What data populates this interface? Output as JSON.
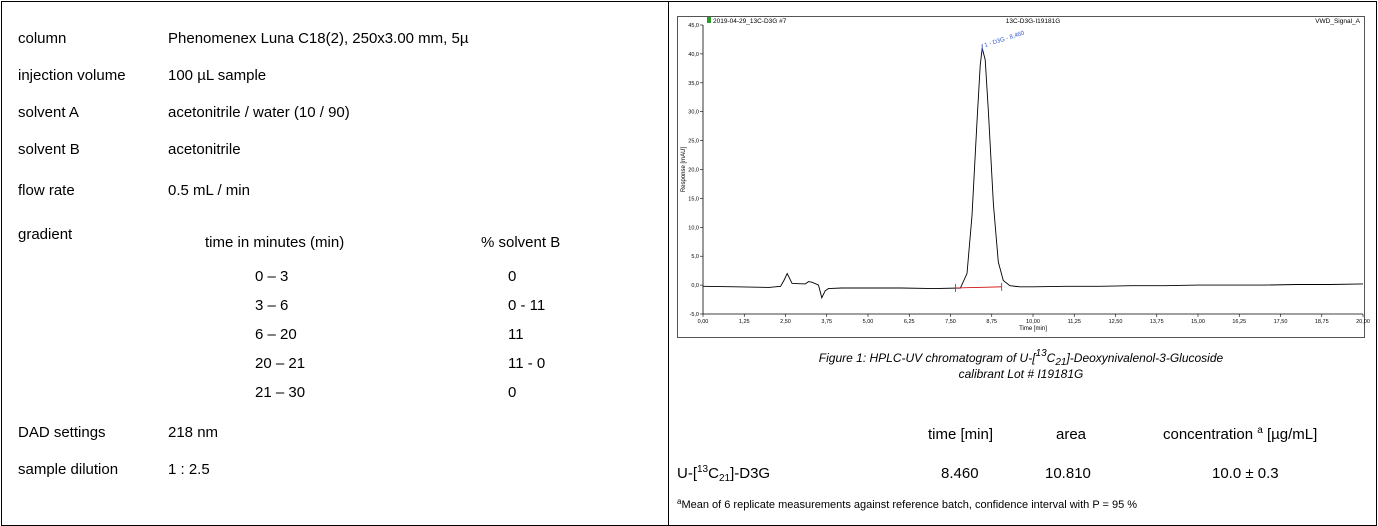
{
  "params": [
    {
      "label": "column",
      "value": "Phenomenex Luna C18(2), 250x3.00 mm, 5µ"
    },
    {
      "label": "injection volume",
      "value": "100 µL sample"
    },
    {
      "label": "solvent A",
      "value": "acetonitrile / water (10 / 90)"
    },
    {
      "label": "solvent B",
      "value": "acetonitrile"
    },
    {
      "label": "flow rate",
      "value": "0.5 mL / min"
    },
    {
      "label": "gradient",
      "value": ""
    },
    {
      "label": "DAD settings",
      "value": "218 nm"
    },
    {
      "label": "sample dilution",
      "value": "1 : 2.5"
    }
  ],
  "gradient": {
    "col1_header": "time in minutes (min)",
    "col2_header": "% solvent B",
    "rows": [
      {
        "time": "0 – 3",
        "b": "0"
      },
      {
        "time": "3 – 6",
        "b": "0 - 11"
      },
      {
        "time": "6 – 20",
        "b": "11"
      },
      {
        "time": "20 – 21",
        "b": "11 - 0"
      },
      {
        "time": "21 – 30",
        "b": "0"
      }
    ]
  },
  "chart_data": {
    "type": "line",
    "header_left": "2019-04-29_13C-D3G #7",
    "header_center": "13C-D3G-I19181G",
    "header_right": "VWD_Signal_A",
    "xlabel": "Time [min]",
    "ylabel": "Response [mAU]",
    "xlim": [
      0,
      20
    ],
    "ylim": [
      -5,
      45
    ],
    "x_ticks": [
      "0,00",
      "1,25",
      "2,50",
      "3,75",
      "5,00",
      "6,25",
      "7,50",
      "8,75",
      "10,00",
      "11,25",
      "12,50",
      "13,75",
      "15,00",
      "16,25",
      "17,50",
      "18,75",
      "20,00"
    ],
    "y_ticks": [
      "-5,0",
      "0,0",
      "5,0",
      "10,0",
      "15,0",
      "20,0",
      "25,0",
      "30,0",
      "35,0",
      "40,0",
      "45,0"
    ],
    "peak_label": "1 - D3G - 8,460",
    "series": [
      {
        "color": "#000000",
        "x": [
          0,
          1,
          2,
          2.35,
          2.45,
          2.55,
          2.7,
          3.1,
          3.2,
          3.3,
          3.5,
          3.6,
          3.7,
          3.8,
          4.2,
          5,
          6,
          7,
          7.8,
          8.0,
          8.15,
          8.3,
          8.4,
          8.46,
          8.55,
          8.65,
          8.8,
          8.95,
          9.1,
          9.3,
          9.6,
          10,
          11,
          12,
          13,
          14,
          15,
          16,
          17,
          18,
          19,
          20
        ],
        "y": [
          -0.2,
          -0.3,
          -0.4,
          -0.2,
          0.8,
          2.0,
          0.3,
          0.2,
          0.6,
          0.5,
          0.0,
          -2.2,
          -1.0,
          -0.6,
          -0.5,
          -0.5,
          -0.5,
          -0.6,
          -0.5,
          2.0,
          12.0,
          28.0,
          38.0,
          41.0,
          39.0,
          30.0,
          14.0,
          4.0,
          0.8,
          -0.1,
          -0.3,
          -0.3,
          -0.2,
          -0.2,
          -0.1,
          -0.1,
          0.0,
          0.0,
          0.0,
          0.1,
          0.1,
          0.2
        ]
      },
      {
        "color": "#cc0000",
        "x": [
          7.65,
          9.05
        ],
        "y": [
          -0.5,
          -0.3
        ]
      }
    ],
    "markers": [
      {
        "x": 7.65,
        "y": -0.5,
        "color": "#3355cc"
      },
      {
        "x": 9.05,
        "y": -0.3,
        "color": "#3355cc"
      },
      {
        "x": 8.46,
        "y": 41.0,
        "color": "#3355cc"
      }
    ]
  },
  "caption": {
    "line1": "Figure 1: HPLC-UV chromatogram of U-[",
    "sup13": "13",
    "c": "C",
    "sub21": "21",
    "line1_end": "]-Deoxynivalenol-3-Glucoside",
    "line2": "calibrant Lot # I19181G"
  },
  "results": {
    "headers": {
      "time": "time [min]",
      "area": "area",
      "conc": "concentration",
      "conc_sup": "a",
      "conc_unit": "[µg/mL]"
    },
    "row": {
      "name_pre": "U-[",
      "name_sup": "13",
      "name_c": "C",
      "name_sub": "21",
      "name_post": "]-D3G",
      "time": "8.460",
      "area": "10.810",
      "conc": "10.0 ± 0.3"
    }
  },
  "footnote": {
    "sup": "a",
    "text": "Mean of 6 replicate measurements against reference batch, confidence interval with P = 95 %"
  }
}
